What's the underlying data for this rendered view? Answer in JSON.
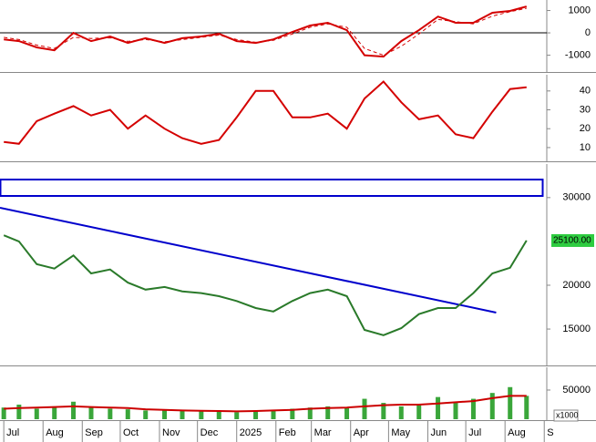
{
  "chart_data": [
    {
      "type": "line",
      "x": [
        0,
        12,
        26,
        40,
        55,
        69,
        84,
        98,
        112,
        127,
        141,
        156,
        170,
        184,
        199,
        213,
        228,
        242,
        256,
        271,
        285,
        300,
        314,
        328,
        343,
        357,
        371,
        386,
        400,
        413
      ],
      "xlim": [
        -3,
        429
      ],
      "series": [
        {
          "color": "#d40000",
          "values": [
            -290,
            -370,
            -650,
            -780,
            0,
            -370,
            -160,
            -450,
            -240,
            -450,
            -240,
            -160,
            -40,
            -370,
            -450,
            -290,
            40,
            330,
            450,
            120,
            -1000,
            -1060,
            -370,
            120,
            730,
            450,
            450,
            900,
            980,
            1180
          ]
        },
        {
          "color": "#d40000",
          "dash": true,
          "values": [
            -200,
            -300,
            -550,
            -700,
            -200,
            -250,
            -220,
            -380,
            -300,
            -400,
            -300,
            -200,
            -100,
            -300,
            -420,
            -330,
            -50,
            250,
            400,
            250,
            -700,
            -1000,
            -600,
            -50,
            600,
            500,
            400,
            750,
            950,
            1100
          ]
        }
      ],
      "ylim": [
        -1710,
        1470
      ],
      "yticks": [
        1000,
        0,
        -1000
      ],
      "zero_line": true
    },
    {
      "type": "line",
      "x": [
        0,
        12,
        26,
        40,
        55,
        69,
        84,
        98,
        112,
        127,
        141,
        156,
        170,
        184,
        199,
        213,
        228,
        242,
        256,
        271,
        285,
        300,
        314,
        328,
        343,
        357,
        371,
        386,
        400,
        413
      ],
      "xlim": [
        -3,
        429
      ],
      "series": [
        {
          "color": "#d40000",
          "values": [
            13,
            12,
            24,
            28,
            32,
            27,
            30,
            20,
            27,
            20,
            15,
            12,
            14,
            26,
            40,
            40,
            26,
            26,
            28,
            20,
            36,
            45,
            34,
            25,
            27,
            17,
            15,
            29,
            41,
            42
          ]
        }
      ],
      "ylim": [
        3.2,
        48.6
      ],
      "yticks": [
        40,
        30,
        20,
        10
      ]
    },
    {
      "type": "line",
      "x": [
        0,
        12,
        26,
        40,
        55,
        69,
        84,
        98,
        112,
        127,
        141,
        156,
        170,
        184,
        199,
        213,
        228,
        242,
        256,
        271,
        285,
        300,
        314,
        328,
        343,
        357,
        371,
        386,
        400,
        413
      ],
      "xlim": [
        -3,
        429
      ],
      "series": [
        {
          "color": "#2a7a2a",
          "values": [
            25700,
            25000,
            22400,
            21900,
            23400,
            21350,
            21800,
            20300,
            19500,
            19800,
            19300,
            19100,
            18750,
            18200,
            17400,
            17000,
            18200,
            19100,
            19500,
            18750,
            14900,
            14300,
            15100,
            16700,
            17400,
            17400,
            19100,
            21350,
            22000,
            25100
          ],
          "value_labels": [
            null,
            null,
            null,
            null,
            null,
            null,
            null,
            null,
            null,
            null,
            null,
            null,
            null,
            null,
            null,
            null,
            null,
            null,
            null,
            null,
            null,
            null,
            null,
            null,
            null,
            null,
            null,
            null,
            null,
            "25100.00"
          ]
        }
      ],
      "ylim": [
        10950,
        33830
      ],
      "yticks": [
        15000,
        20000,
        30000
      ],
      "trendline": {
        "color": "#0000cc",
        "x": [
          -3,
          389
        ],
        "y": [
          28840,
          16880
        ]
      },
      "box": {
        "color": "#0000cc",
        "ylim": [
          30190,
          32060
        ]
      }
    },
    {
      "type": "bar",
      "x": [
        0,
        12,
        26,
        40,
        55,
        69,
        84,
        98,
        112,
        127,
        141,
        156,
        170,
        184,
        199,
        213,
        228,
        242,
        256,
        271,
        285,
        300,
        314,
        328,
        343,
        357,
        371,
        386,
        400,
        413
      ],
      "xlim": [
        -3,
        429
      ],
      "series": [
        {
          "type": "bar",
          "color": "#3aa63a",
          "values": [
            20000,
            25000,
            18000,
            22000,
            30000,
            20000,
            18000,
            17000,
            15000,
            16000,
            14000,
            15000,
            13000,
            12000,
            14000,
            16000,
            18000,
            20000,
            22000,
            19000,
            35000,
            28000,
            22000,
            24000,
            38000,
            30000,
            35000,
            45000,
            55000,
            40000
          ]
        },
        {
          "type": "line",
          "color": "#cc0000",
          "values": [
            18000,
            19000,
            20000,
            21000,
            22000,
            21000,
            20000,
            19000,
            17000,
            16000,
            15000,
            14500,
            14000,
            13500,
            14000,
            15000,
            16000,
            18000,
            19000,
            20000,
            22000,
            24000,
            25000,
            25000,
            27000,
            29000,
            31000,
            36000,
            40000,
            40000
          ]
        }
      ],
      "ylim": [
        0,
        89000
      ],
      "yticks": [
        50000
      ],
      "unit_label": "x1000",
      "xticks": [
        {
          "value": 0,
          "label": "Jul"
        },
        {
          "value": 31,
          "label": "Aug"
        },
        {
          "value": 62,
          "label": "Sep"
        },
        {
          "value": 92,
          "label": "Oct"
        },
        {
          "value": 123,
          "label": "Nov"
        },
        {
          "value": 153,
          "label": "Dec"
        },
        {
          "value": 184,
          "label": "2025"
        },
        {
          "value": 215,
          "label": "Feb"
        },
        {
          "value": 243,
          "label": "Mar"
        },
        {
          "value": 274,
          "label": "Apr"
        },
        {
          "value": 304,
          "label": "May"
        },
        {
          "value": 335,
          "label": "Jun"
        },
        {
          "value": 365,
          "label": "Jul"
        },
        {
          "value": 396,
          "label": "Aug"
        },
        {
          "value": 427,
          "label": "S"
        }
      ]
    }
  ]
}
